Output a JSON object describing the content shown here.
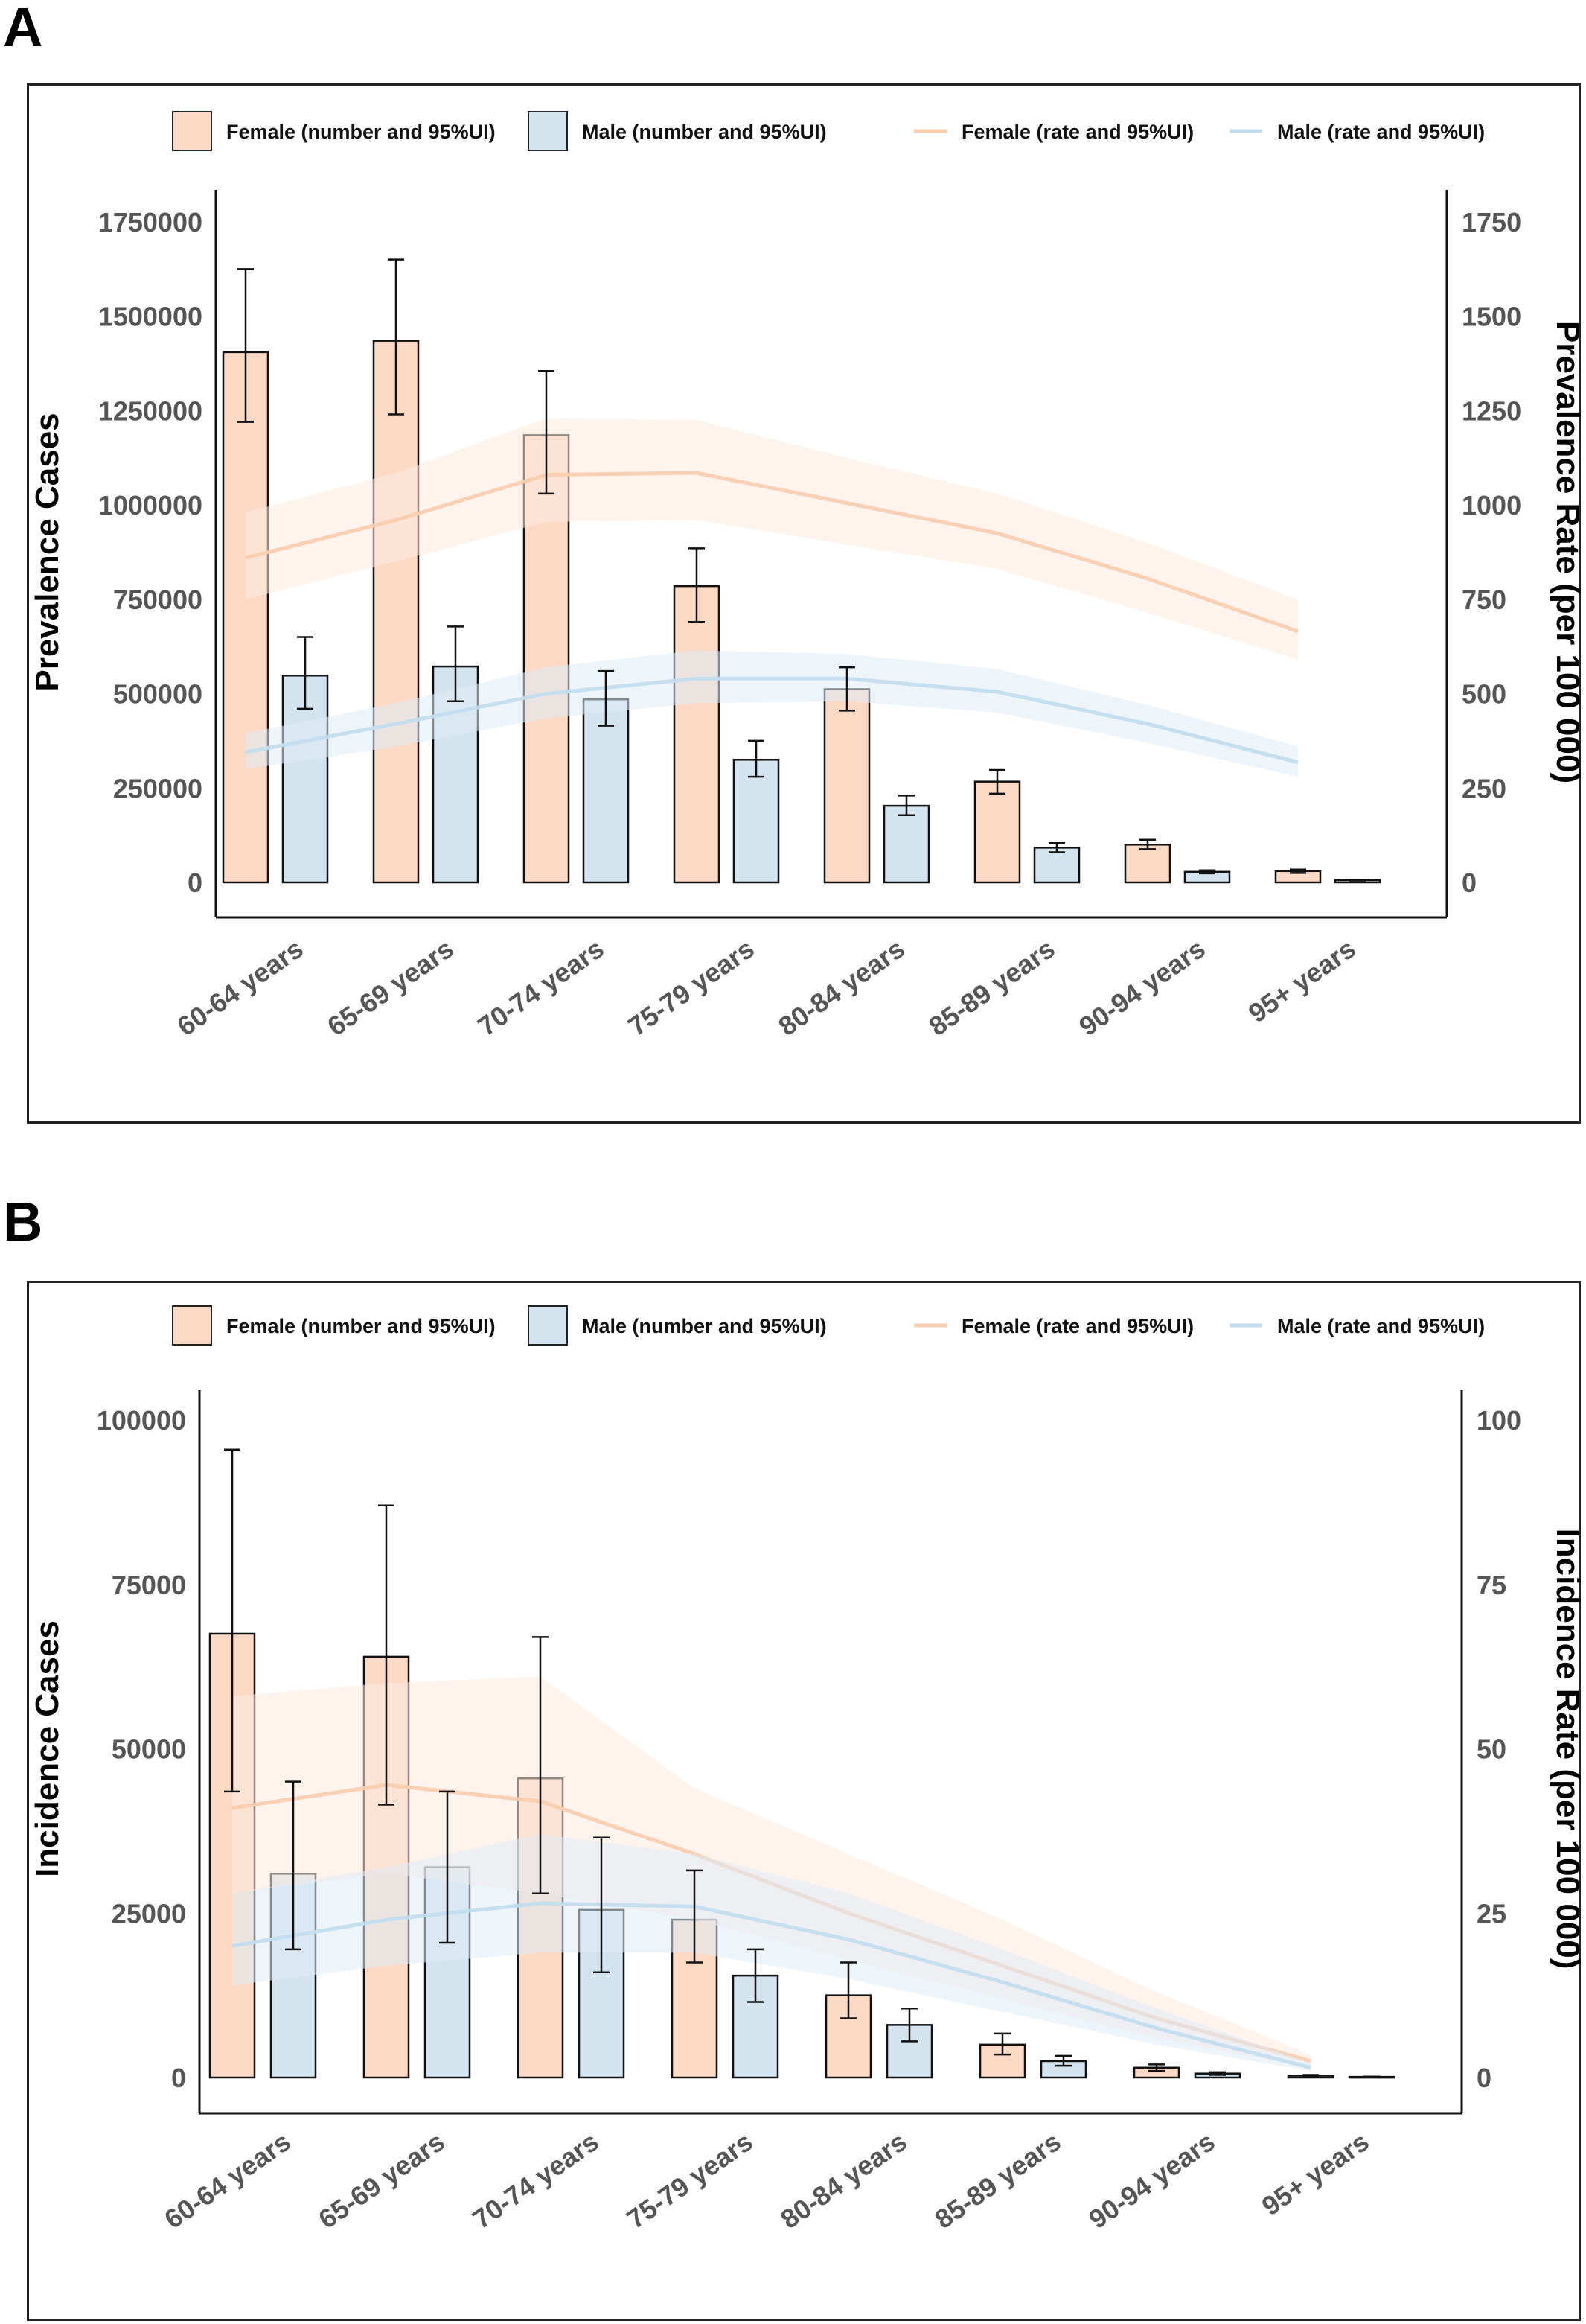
{
  "panels": [
    {
      "id": "A",
      "letter": "A"
    },
    {
      "id": "B",
      "letter": "B"
    }
  ],
  "legend": {
    "female_number": "Female (number and 95%UI)",
    "male_number": "Male (number and 95%UI)",
    "female_rate": "Female (rate and 95%UI)",
    "male_rate": "Male (rate and 95%UI)"
  },
  "colors": {
    "female_bar": "#FBD9C5",
    "male_bar": "#D3E4EF",
    "female_line": "#F9CDB0",
    "male_line": "#C3DDEE",
    "female_band": "#FDEBDF",
    "male_band": "#DEEBF5"
  },
  "chart_data": [
    {
      "type": "bar+line",
      "panel": "A",
      "categories": [
        "60-64 years",
        "65-69 years",
        "70-74 years",
        "75-79 years",
        "80-84 years",
        "85-89 years",
        "90-94 years",
        "95+ years"
      ],
      "ylabel": "Prevalence Cases",
      "y2label": "Prevalence Rate (per 100 000)",
      "ylim": [
        0,
        1750000
      ],
      "y2lim": [
        0,
        1750
      ],
      "yticks": [
        "0",
        "250000",
        "500000",
        "750000",
        "1000000",
        "1250000",
        "1500000",
        "1750000"
      ],
      "y2ticks": [
        "0",
        "250",
        "500",
        "750",
        "1000",
        "1250",
        "1500",
        "1750"
      ],
      "bars": [
        {
          "name": "Female (number and 95%UI)",
          "values": [
            1405000,
            1435000,
            1185000,
            785000,
            512000,
            267000,
            100000,
            30000
          ],
          "lower": [
            1220000,
            1240000,
            1030000,
            690000,
            455000,
            235000,
            88000,
            25000
          ],
          "upper": [
            1625000,
            1650000,
            1355000,
            885000,
            570000,
            298000,
            113000,
            34000
          ]
        },
        {
          "name": "Male (number and 95%UI)",
          "values": [
            548000,
            572000,
            485000,
            325000,
            203000,
            92000,
            28000,
            6000
          ],
          "lower": [
            460000,
            480000,
            415000,
            280000,
            178000,
            80000,
            24000,
            5000
          ],
          "upper": [
            650000,
            678000,
            560000,
            375000,
            230000,
            104000,
            32000,
            7000
          ]
        }
      ],
      "lines": [
        {
          "name": "Female (rate and 95%UI)",
          "values": [
            860,
            960,
            1080,
            1085,
            1005,
            925,
            805,
            665
          ],
          "lower": [
            750,
            850,
            955,
            960,
            895,
            830,
            715,
            590
          ],
          "upper": [
            980,
            1085,
            1230,
            1225,
            1125,
            1030,
            900,
            750
          ]
        },
        {
          "name": "Male (rate and 95%UI)",
          "values": [
            345,
            420,
            500,
            540,
            540,
            505,
            420,
            318
          ],
          "lower": [
            300,
            360,
            435,
            475,
            480,
            450,
            370,
            280
          ],
          "upper": [
            395,
            475,
            570,
            615,
            605,
            565,
            470,
            360
          ]
        }
      ]
    },
    {
      "type": "bar+line",
      "panel": "B",
      "categories": [
        "60-64 years",
        "65-69 years",
        "70-74 years",
        "75-79 years",
        "80-84 years",
        "85-89 years",
        "90-94 years",
        "95+ years"
      ],
      "ylabel": "Incidence Cases",
      "y2label": "Incidence Rate (per 100 000)",
      "ylim": [
        0,
        100000
      ],
      "y2lim": [
        0,
        100
      ],
      "yticks": [
        "0",
        "25000",
        "50000",
        "75000",
        "100000"
      ],
      "y2ticks": [
        "0",
        "25",
        "50",
        "75",
        "100"
      ],
      "bars": [
        {
          "name": "Female (number and 95%UI)",
          "values": [
            67500,
            64000,
            45500,
            24000,
            12500,
            5000,
            1500,
            300
          ],
          "lower": [
            43500,
            41500,
            28000,
            17500,
            9000,
            3500,
            1000,
            200
          ],
          "upper": [
            95500,
            87000,
            67000,
            31500,
            17500,
            6700,
            2000,
            400
          ]
        },
        {
          "name": "Male (number and 95%UI)",
          "values": [
            31000,
            32000,
            25500,
            15500,
            8000,
            2500,
            600,
            100
          ],
          "lower": [
            19500,
            20500,
            16000,
            11500,
            5500,
            1800,
            400,
            60
          ],
          "upper": [
            45000,
            43500,
            36500,
            19500,
            10500,
            3300,
            800,
            140
          ]
        }
      ],
      "lines": [
        {
          "name": "Female (rate and 95%UI)",
          "values": [
            41,
            44.5,
            42,
            34,
            25,
            17,
            9,
            2.5
          ],
          "lower": [
            28,
            31,
            28,
            24,
            18,
            12,
            6,
            1.5
          ],
          "upper": [
            58,
            60,
            61,
            44,
            34,
            24,
            13,
            3.5
          ]
        },
        {
          "name": "Male (rate and 95%UI)",
          "values": [
            20,
            24,
            26.5,
            26,
            21,
            14.5,
            7.5,
            1.5
          ],
          "lower": [
            14,
            17,
            19,
            19,
            15,
            10,
            5,
            1
          ],
          "upper": [
            28,
            32,
            37,
            34,
            28,
            19.5,
            10.5,
            2.2
          ]
        }
      ]
    }
  ]
}
